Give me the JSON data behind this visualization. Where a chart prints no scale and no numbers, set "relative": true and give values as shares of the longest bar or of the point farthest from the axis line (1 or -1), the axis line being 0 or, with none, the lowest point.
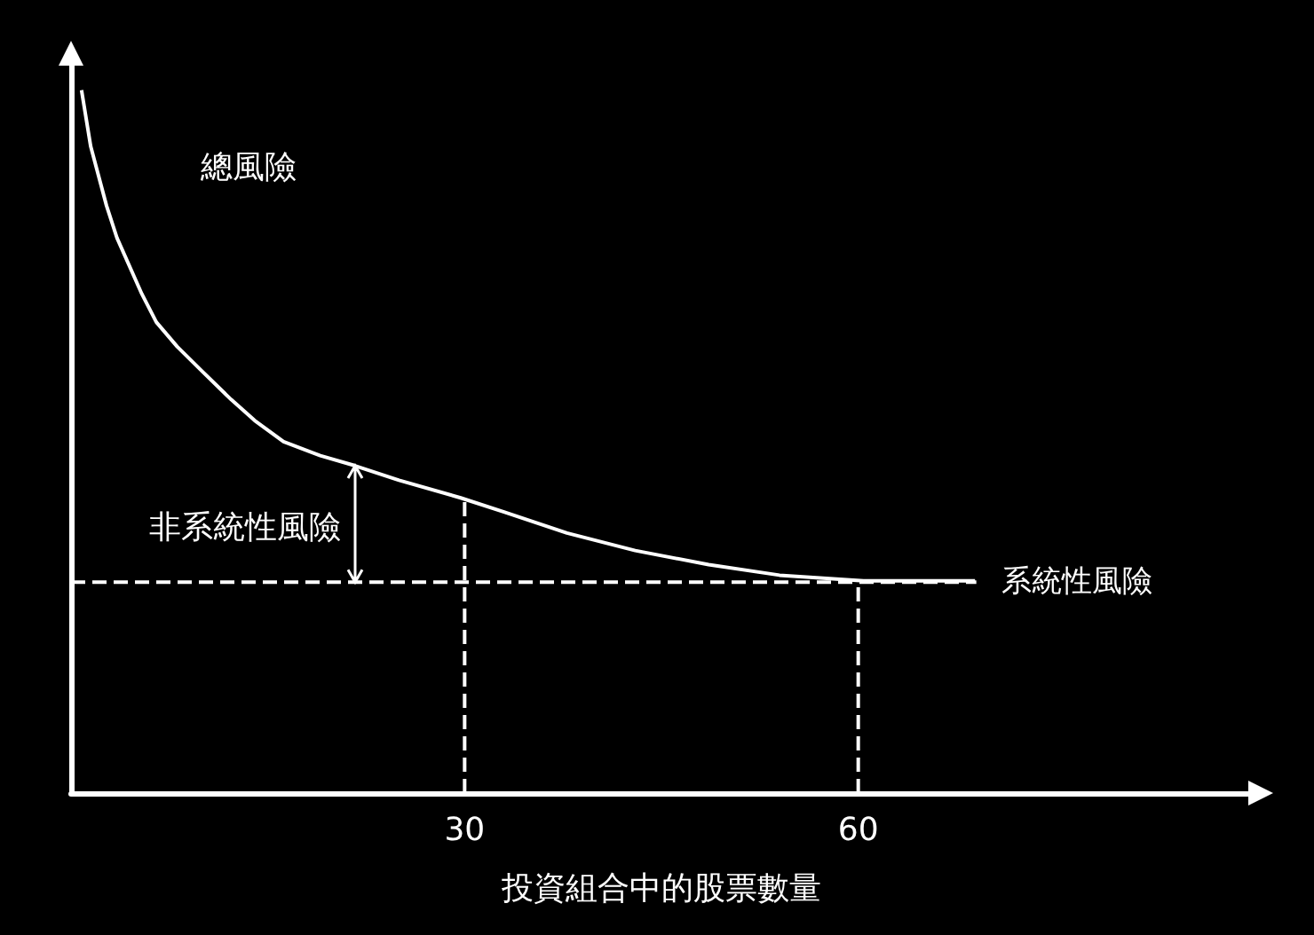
{
  "chart_data": {
    "type": "line",
    "relative": true,
    "xlabel": "投資組合中的股票數量",
    "xlim": [
      0,
      90
    ],
    "xticks": [
      30,
      60
    ],
    "grid": false,
    "legend": false,
    "marker": "none",
    "tick_labels": "x",
    "series": [
      {
        "color": "#ffffff",
        "line_style": "solid",
        "x": [
          0.8,
          1.5,
          2.7,
          3.5,
          5.4,
          6.5,
          8.1,
          10,
          12.2,
          14,
          16.2,
          19,
          21.6,
          25,
          29.7,
          33,
          37.8,
          43,
          48.6,
          54,
          60.4,
          68.9
        ],
        "values": [
          1.0,
          0.92,
          0.836,
          0.79,
          0.71,
          0.67,
          0.635,
          0.6,
          0.56,
          0.53,
          0.5,
          0.48,
          0.466,
          0.445,
          0.42,
          0.4,
          0.37,
          0.345,
          0.325,
          0.31,
          0.302,
          0.302
        ]
      },
      {
        "name": "系統性風險",
        "color": "#ffffff",
        "line_style": "dashed",
        "x": [
          0,
          69
        ],
        "values": [
          0.3,
          0.3
        ]
      },
      {
        "color": "#ffffff",
        "line_style": "dashed",
        "x": [
          30,
          30
        ],
        "values": [
          0,
          0.42
        ]
      },
      {
        "color": "#ffffff",
        "line_style": "dashed",
        "x": [
          60,
          60
        ],
        "values": [
          0,
          0.302
        ]
      }
    ],
    "annotations": [
      "總風險",
      "非系統性風險"
    ]
  }
}
